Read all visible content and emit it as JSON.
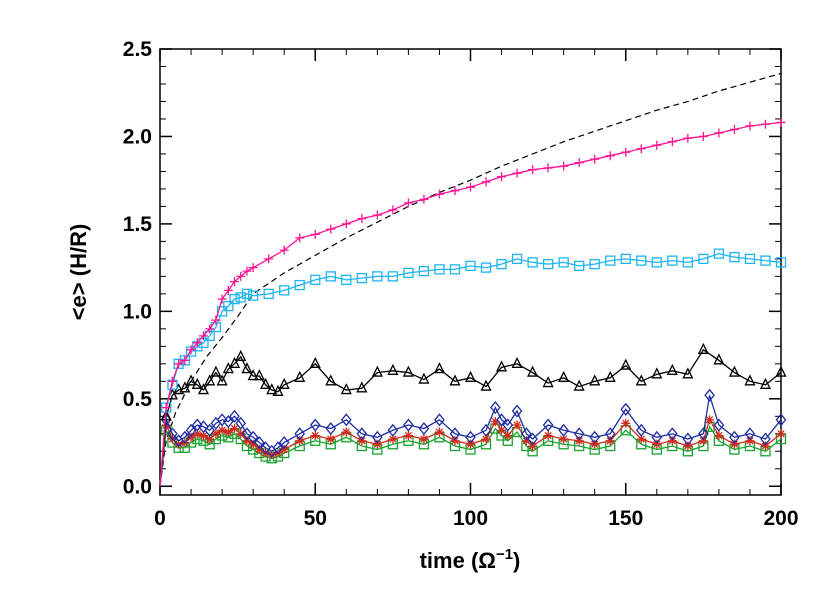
{
  "chart_data": {
    "type": "line",
    "xlabel": "time (Ω⁻¹)",
    "xlabel_main": "time (",
    "xlabel_unit": "Ω",
    "xlabel_exp": "−1",
    "xlabel_close": ")",
    "ylabel": "<e> (H/R)",
    "xlim": [
      0,
      200
    ],
    "ylim": [
      -0.05,
      2.5
    ],
    "xticks": [
      0,
      50,
      100,
      150,
      200
    ],
    "xtick_labels": [
      "0",
      "50",
      "100",
      "150",
      "200"
    ],
    "yticks": [
      0.0,
      0.5,
      1.0,
      1.5,
      2.0,
      2.5
    ],
    "ytick_labels": [
      "0.0",
      "0.5",
      "1.0",
      "1.5",
      "2.0",
      "2.5"
    ],
    "grid": false,
    "legend": "none",
    "series": [
      {
        "color": "#ff1493",
        "marker": "plus",
        "x": [
          0,
          2,
          4,
          6,
          8,
          10,
          12,
          14,
          16,
          18,
          20,
          22,
          24,
          26,
          28,
          30,
          35,
          40,
          45,
          50,
          55,
          60,
          65,
          70,
          75,
          80,
          85,
          90,
          95,
          100,
          105,
          110,
          115,
          120,
          125,
          130,
          135,
          140,
          145,
          150,
          155,
          160,
          165,
          170,
          175,
          180,
          185,
          190,
          195,
          200
        ],
        "y": [
          0.0,
          0.45,
          0.6,
          0.7,
          0.72,
          0.78,
          0.82,
          0.86,
          0.9,
          0.95,
          1.07,
          1.12,
          1.17,
          1.2,
          1.23,
          1.25,
          1.3,
          1.35,
          1.42,
          1.44,
          1.47,
          1.5,
          1.53,
          1.55,
          1.58,
          1.62,
          1.64,
          1.67,
          1.69,
          1.71,
          1.74,
          1.77,
          1.79,
          1.81,
          1.82,
          1.83,
          1.85,
          1.87,
          1.89,
          1.91,
          1.93,
          1.95,
          1.97,
          1.99,
          2.0,
          2.02,
          2.04,
          2.06,
          2.07,
          2.08
        ]
      },
      {
        "color": "#1eb4f0",
        "marker": "square",
        "x": [
          0,
          2,
          4,
          6,
          8,
          10,
          12,
          14,
          16,
          18,
          20,
          22,
          24,
          26,
          28,
          30,
          35,
          40,
          45,
          50,
          55,
          60,
          65,
          70,
          75,
          80,
          85,
          90,
          95,
          100,
          105,
          110,
          115,
          120,
          125,
          130,
          135,
          140,
          145,
          150,
          155,
          160,
          165,
          170,
          175,
          180,
          185,
          190,
          195,
          200
        ],
        "y": [
          0.0,
          0.45,
          0.58,
          0.7,
          0.72,
          0.77,
          0.8,
          0.82,
          0.86,
          0.91,
          1.0,
          1.03,
          1.07,
          1.08,
          1.1,
          1.09,
          1.1,
          1.12,
          1.15,
          1.18,
          1.2,
          1.18,
          1.19,
          1.2,
          1.2,
          1.22,
          1.23,
          1.24,
          1.24,
          1.26,
          1.25,
          1.27,
          1.3,
          1.28,
          1.27,
          1.28,
          1.26,
          1.27,
          1.29,
          1.3,
          1.29,
          1.28,
          1.29,
          1.28,
          1.3,
          1.33,
          1.31,
          1.3,
          1.29,
          1.28
        ]
      },
      {
        "color": "#000000",
        "marker": "triangle",
        "x": [
          0,
          2,
          4,
          6,
          8,
          10,
          12,
          14,
          16,
          18,
          20,
          22,
          24,
          26,
          28,
          30,
          32,
          34,
          36,
          38,
          40,
          45,
          50,
          55,
          60,
          65,
          70,
          75,
          80,
          85,
          90,
          95,
          100,
          105,
          110,
          115,
          120,
          125,
          130,
          135,
          140,
          145,
          150,
          155,
          160,
          165,
          170,
          175,
          180,
          185,
          190,
          195,
          200
        ],
        "y": [
          0.0,
          0.4,
          0.52,
          0.55,
          0.56,
          0.6,
          0.58,
          0.55,
          0.6,
          0.65,
          0.6,
          0.67,
          0.7,
          0.74,
          0.67,
          0.63,
          0.63,
          0.58,
          0.55,
          0.54,
          0.58,
          0.62,
          0.7,
          0.6,
          0.55,
          0.56,
          0.65,
          0.66,
          0.65,
          0.61,
          0.67,
          0.6,
          0.62,
          0.57,
          0.68,
          0.7,
          0.65,
          0.59,
          0.62,
          0.57,
          0.6,
          0.62,
          0.69,
          0.6,
          0.64,
          0.66,
          0.64,
          0.78,
          0.72,
          0.65,
          0.6,
          0.58,
          0.65
        ]
      },
      {
        "color": "#1f2fa0",
        "marker": "diamond",
        "x": [
          0,
          2,
          4,
          6,
          8,
          10,
          12,
          14,
          16,
          18,
          20,
          22,
          24,
          26,
          28,
          30,
          32,
          34,
          36,
          38,
          40,
          45,
          50,
          55,
          60,
          65,
          70,
          75,
          80,
          85,
          90,
          95,
          100,
          105,
          108,
          110,
          112,
          115,
          118,
          120,
          125,
          130,
          135,
          140,
          145,
          150,
          155,
          160,
          165,
          170,
          175,
          177,
          180,
          185,
          190,
          195,
          200
        ],
        "y": [
          0.0,
          0.38,
          0.3,
          0.26,
          0.28,
          0.32,
          0.35,
          0.34,
          0.32,
          0.36,
          0.38,
          0.37,
          0.4,
          0.36,
          0.3,
          0.28,
          0.25,
          0.22,
          0.2,
          0.22,
          0.25,
          0.3,
          0.35,
          0.33,
          0.38,
          0.3,
          0.28,
          0.32,
          0.35,
          0.33,
          0.38,
          0.3,
          0.28,
          0.32,
          0.45,
          0.38,
          0.35,
          0.43,
          0.3,
          0.27,
          0.35,
          0.32,
          0.3,
          0.28,
          0.3,
          0.44,
          0.32,
          0.28,
          0.3,
          0.27,
          0.3,
          0.52,
          0.35,
          0.28,
          0.3,
          0.27,
          0.38
        ]
      },
      {
        "color": "#d42a1f",
        "marker": "asterisk",
        "x": [
          0,
          2,
          4,
          6,
          8,
          10,
          12,
          14,
          16,
          18,
          20,
          22,
          24,
          26,
          28,
          30,
          32,
          34,
          36,
          38,
          40,
          45,
          50,
          55,
          60,
          65,
          70,
          75,
          80,
          85,
          90,
          95,
          100,
          105,
          108,
          110,
          112,
          115,
          118,
          120,
          125,
          130,
          135,
          140,
          145,
          150,
          155,
          160,
          165,
          170,
          175,
          177,
          180,
          185,
          190,
          195,
          200
        ],
        "y": [
          0.0,
          0.35,
          0.27,
          0.24,
          0.25,
          0.28,
          0.3,
          0.29,
          0.27,
          0.3,
          0.32,
          0.31,
          0.33,
          0.3,
          0.26,
          0.24,
          0.21,
          0.19,
          0.18,
          0.19,
          0.21,
          0.26,
          0.29,
          0.27,
          0.31,
          0.26,
          0.24,
          0.27,
          0.29,
          0.27,
          0.31,
          0.26,
          0.24,
          0.27,
          0.37,
          0.32,
          0.29,
          0.35,
          0.26,
          0.23,
          0.29,
          0.27,
          0.26,
          0.24,
          0.26,
          0.36,
          0.27,
          0.24,
          0.26,
          0.23,
          0.26,
          0.38,
          0.29,
          0.24,
          0.26,
          0.23,
          0.3
        ]
      },
      {
        "color": "#19a32e",
        "marker": "square",
        "x": [
          0,
          2,
          4,
          6,
          8,
          10,
          12,
          14,
          16,
          18,
          20,
          22,
          24,
          26,
          28,
          30,
          32,
          34,
          36,
          38,
          40,
          45,
          50,
          55,
          60,
          65,
          70,
          75,
          80,
          85,
          90,
          95,
          100,
          105,
          108,
          110,
          112,
          115,
          118,
          120,
          125,
          130,
          135,
          140,
          145,
          150,
          155,
          160,
          165,
          170,
          175,
          177,
          180,
          185,
          190,
          195,
          200
        ],
        "y": [
          0.0,
          0.32,
          0.25,
          0.22,
          0.22,
          0.25,
          0.27,
          0.26,
          0.24,
          0.27,
          0.29,
          0.28,
          0.3,
          0.27,
          0.23,
          0.21,
          0.19,
          0.17,
          0.16,
          0.17,
          0.19,
          0.23,
          0.26,
          0.24,
          0.28,
          0.23,
          0.21,
          0.24,
          0.26,
          0.24,
          0.28,
          0.23,
          0.21,
          0.24,
          0.33,
          0.29,
          0.26,
          0.31,
          0.23,
          0.2,
          0.26,
          0.24,
          0.23,
          0.21,
          0.23,
          0.32,
          0.24,
          0.21,
          0.23,
          0.2,
          0.23,
          0.34,
          0.26,
          0.21,
          0.23,
          0.2,
          0.27
        ]
      }
    ],
    "reference_curve": {
      "style": "dashed",
      "color": "#000000",
      "x": [
        0,
        2,
        5,
        10,
        15,
        20,
        25,
        30,
        40,
        50,
        60,
        70,
        80,
        90,
        100,
        110,
        120,
        130,
        140,
        150,
        160,
        170,
        180,
        190,
        200
      ],
      "y": [
        0.0,
        0.26,
        0.42,
        0.6,
        0.74,
        0.85,
        0.97,
        1.1,
        1.22,
        1.32,
        1.42,
        1.51,
        1.6,
        1.68,
        1.75,
        1.83,
        1.9,
        1.97,
        2.03,
        2.09,
        2.15,
        2.2,
        2.26,
        2.31,
        2.36
      ]
    }
  }
}
